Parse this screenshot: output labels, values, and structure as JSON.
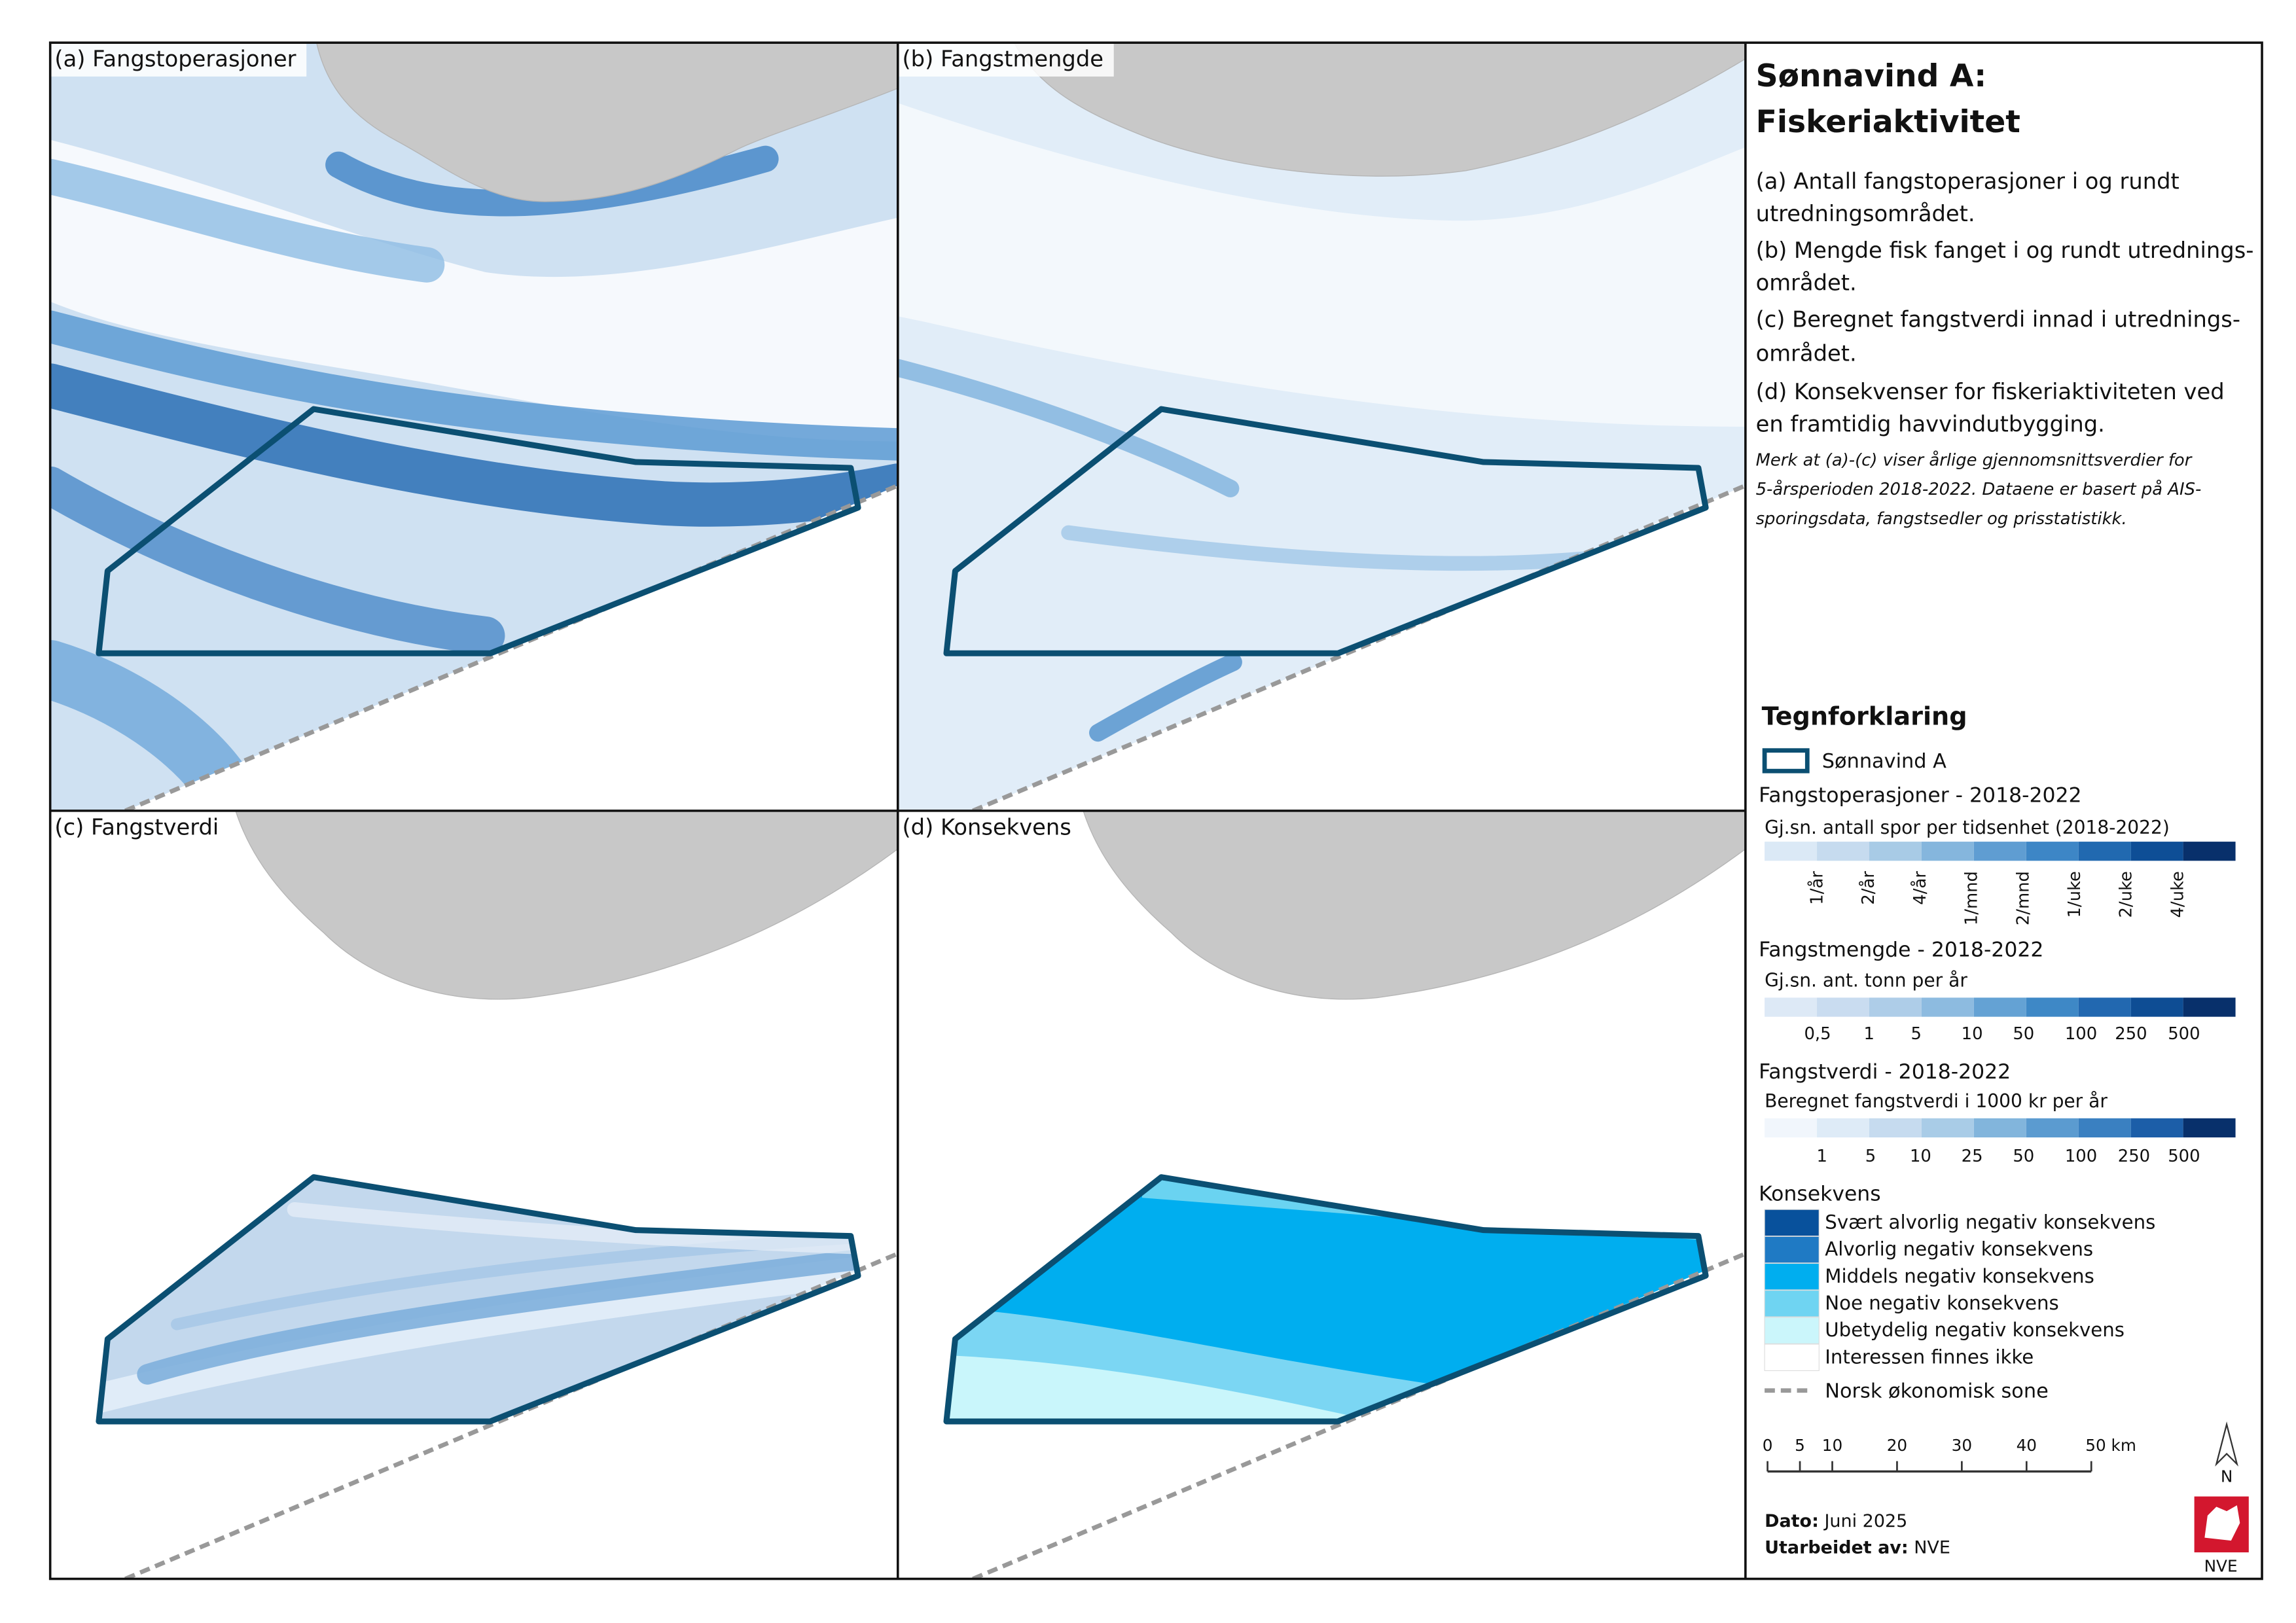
{
  "panels": [
    {
      "label": "(a) Fangstoperasjoner"
    },
    {
      "label": "(b) Fangstmengde"
    },
    {
      "label": "(c) Fangstverdi"
    },
    {
      "label": "(d) Konsekvens"
    }
  ],
  "sidebar": {
    "title": [
      "Sønnavind A:",
      "Fiskeriaktivitet"
    ],
    "descriptions": [
      [
        "(a) Antall fangstoperasjoner i og rundt",
        "utredningsområdet."
      ],
      [
        "(b) Mengde fisk fanget i og rundt utrednings-",
        "området."
      ],
      [
        "(c) Beregnet fangstverdi innad i utrednings-",
        "området."
      ],
      [
        "(d) Konsekvenser for fiskeriaktiviteten ved",
        "en framtidig havvindutbygging."
      ]
    ],
    "note": [
      "Merk at (a)-(c) viser årlige gjennomsnittsverdier for",
      "5-årsperioden 2018-2022. Dataene er basert på AIS-",
      "sporingsdata, fangstsedler og prisstatistikk."
    ]
  },
  "legend": {
    "title": "Tegnforklaring",
    "area": "Sønnavind A",
    "sections": [
      {
        "title": "Fangstoperasjoner - 2018-2022",
        "subtitle": "Gj.sn. antall spor per tidsenhet (2018-2022)",
        "labels": [
          "1/år",
          "2/år",
          "4/år",
          "1/mnd",
          "2/mnd",
          "1/uke",
          "2/uke",
          "4/uke"
        ]
      },
      {
        "title": "Fangstmengde - 2018-2022",
        "subtitle": "Gj.sn. ant. tonn per år",
        "labels": [
          "0,5",
          "1",
          "5",
          "10",
          "50",
          "100",
          "250",
          "500"
        ]
      },
      {
        "title": "Fangstverdi - 2018-2022",
        "subtitle": "Beregnet fangstverdi i 1000 kr per år",
        "labels": [
          "1",
          "5",
          "10",
          "25",
          "50",
          "100",
          "250",
          "500"
        ]
      }
    ],
    "consequence": {
      "title": "Konsekvens",
      "items": [
        "Svært alvorlig negativ konsekvens",
        "Alvorlig negativ konsekvens",
        "Middels negativ konsekvens",
        "Noe negativ konsekvens",
        "Ubetydelig negativ konsekvens",
        "Interessen finnes ikke"
      ]
    },
    "boundary": "Norsk økonomisk sone"
  },
  "scale_bar": [
    "0",
    "5",
    "10",
    "20",
    "30",
    "40",
    "50 km"
  ],
  "north": "N",
  "footer": {
    "date_label": "Dato:",
    "date": "Juni 2025",
    "author_label": "Utarbeidet av:",
    "author": "NVE"
  },
  "logo": "NVE"
}
